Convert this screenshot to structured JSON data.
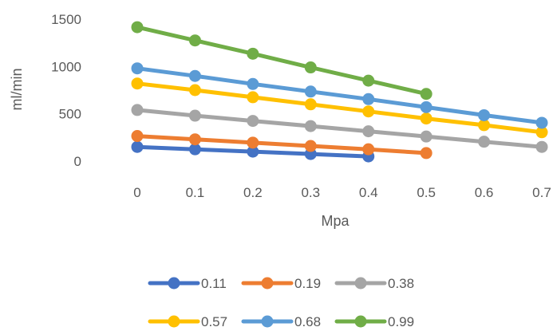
{
  "chart_data": {
    "type": "line",
    "title": "",
    "xlabel": "Mpa",
    "ylabel": "ml/min",
    "xlim": [
      0,
      0.7
    ],
    "ylim": [
      0,
      1500
    ],
    "x_ticks": [
      "0",
      "0.1",
      "0.2",
      "0.3",
      "0.4",
      "0.5",
      "0.6",
      "0.7"
    ],
    "y_ticks": [
      "0",
      "500",
      "1000",
      "1500"
    ],
    "grid": false,
    "legend_position": "bottom",
    "series": [
      {
        "name": "0.11",
        "color": "#4472C4",
        "x": [
          0,
          0.1,
          0.2,
          0.3,
          0.4
        ],
        "values": [
          150,
          125,
          100,
          75,
          50
        ]
      },
      {
        "name": "0.19",
        "color": "#ED7D31",
        "x": [
          0,
          0.1,
          0.2,
          0.3,
          0.4,
          0.5
        ],
        "values": [
          265,
          230,
          195,
          160,
          125,
          85
        ]
      },
      {
        "name": "0.38",
        "color": "#A5A5A5",
        "x": [
          0,
          0.1,
          0.2,
          0.3,
          0.4,
          0.5,
          0.6,
          0.7
        ],
        "values": [
          540,
          480,
          425,
          370,
          315,
          260,
          205,
          150
        ]
      },
      {
        "name": "0.57",
        "color": "#FFC000",
        "x": [
          0,
          0.1,
          0.2,
          0.3,
          0.4,
          0.5,
          0.6,
          0.7
        ],
        "values": [
          820,
          750,
          675,
          600,
          525,
          450,
          380,
          305
        ]
      },
      {
        "name": "0.68",
        "color": "#5B9BD5",
        "x": [
          0,
          0.1,
          0.2,
          0.3,
          0.4,
          0.5,
          0.6,
          0.7
        ],
        "values": [
          980,
          900,
          815,
          735,
          655,
          570,
          485,
          405
        ]
      },
      {
        "name": "0.99",
        "color": "#70AD47",
        "x": [
          0,
          0.1,
          0.2,
          0.3,
          0.4,
          0.5
        ],
        "values": [
          1415,
          1275,
          1135,
          990,
          850,
          710
        ]
      }
    ]
  }
}
